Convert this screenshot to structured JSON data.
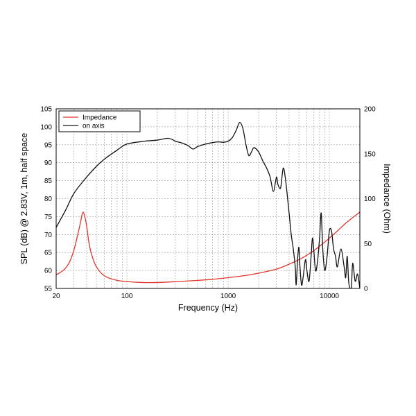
{
  "chart_data": {
    "type": "line",
    "x_scale": "log",
    "xlabel": "Frequency (Hz)",
    "ylabel_left": "SPL (dB) @ 2.83V, 1m, half space",
    "ylabel_right": "Impedance (Ohm)",
    "xlim": [
      20,
      20000
    ],
    "ylim_left": [
      55,
      105
    ],
    "ylim_right": [
      0,
      200
    ],
    "x_ticks": [
      20,
      100,
      1000,
      10000
    ],
    "x_tick_labels": [
      "20",
      "100",
      "1000",
      "10000"
    ],
    "y_ticks_left": [
      55,
      60,
      65,
      70,
      75,
      80,
      85,
      90,
      95,
      100,
      105
    ],
    "y_ticks_right": [
      0,
      50,
      100,
      150,
      200
    ],
    "grid": true,
    "legend": "top-left",
    "series": [
      {
        "name": "Impedance",
        "axis": "right",
        "color": "#e0342c",
        "x": [
          20,
          24,
          27,
          30,
          33,
          35,
          36,
          37,
          38,
          40,
          42,
          45,
          50,
          60,
          80,
          120,
          150,
          200,
          300,
          500,
          700,
          1000,
          1500,
          2000,
          3000,
          4000,
          5000,
          6000,
          7000,
          8000,
          10000,
          12000,
          15000,
          20000
        ],
        "values": [
          15,
          21,
          29,
          43,
          62,
          75,
          82,
          85,
          82,
          70,
          52,
          37,
          24,
          14,
          9,
          7,
          6.5,
          6.6,
          7.5,
          9,
          10.2,
          12,
          14.5,
          17,
          21.5,
          27,
          32,
          37,
          42,
          47,
          56,
          64,
          74,
          85
        ]
      },
      {
        "name": "on axis",
        "axis": "left",
        "color": "#111111",
        "x": [
          20,
          25,
          30,
          40,
          50,
          60,
          80,
          100,
          150,
          200,
          250,
          280,
          300,
          350,
          400,
          450,
          500,
          600,
          700,
          800,
          900,
          1000,
          1100,
          1200,
          1300,
          1400,
          1500,
          1600,
          1700,
          1800,
          2000,
          2200,
          2400,
          2600,
          2800,
          3000,
          3100,
          3300,
          3500,
          3700,
          4000,
          4200,
          4400,
          4600,
          4700,
          4850,
          5000,
          5100,
          5300,
          5500,
          5800,
          6000,
          6300,
          6600,
          6800,
          7000,
          7300,
          7600,
          8000,
          8300,
          8600,
          9000,
          9500,
          10000,
          10500,
          11000,
          11500,
          12000,
          13000,
          14000,
          14500,
          15000,
          15500,
          16000,
          16500,
          17000,
          18000,
          19000,
          20000
        ],
        "values": [
          72,
          77,
          81.5,
          86,
          89,
          91,
          93.5,
          95.2,
          96,
          96.3,
          96.8,
          96.5,
          96,
          95.5,
          94.8,
          93.8,
          94.5,
          95.2,
          95.6,
          95.8,
          95.7,
          96,
          97,
          99,
          101.2,
          99.5,
          95,
          92,
          93,
          94.2,
          93,
          90.5,
          88.5,
          86,
          82,
          86,
          84,
          83,
          88.5,
          85,
          76,
          70,
          66,
          61,
          56,
          63,
          66.5,
          62,
          56,
          58,
          63,
          60,
          57,
          64,
          69,
          66,
          60,
          62,
          69,
          76,
          66,
          60,
          64,
          71,
          71,
          66,
          64,
          61,
          66,
          61,
          58,
          64,
          57,
          55,
          55,
          62,
          57,
          59,
          55
        ]
      }
    ]
  }
}
